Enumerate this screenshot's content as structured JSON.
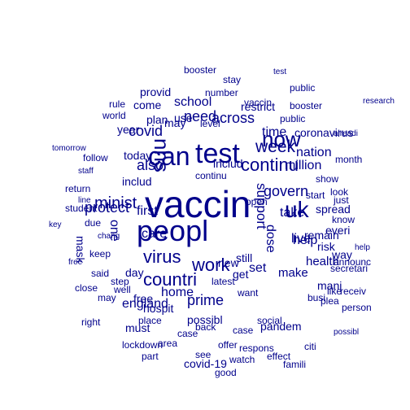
{
  "word_cloud": {
    "color": "#00008b",
    "words": [
      "vaccin",
      "peopl",
      "test",
      "can",
      "now",
      "nhs",
      "uk",
      "virus",
      "work",
      "countri",
      "week",
      "continu",
      "minist",
      "protect",
      "time",
      "covid",
      "also",
      "need",
      "across",
      "govern",
      "support",
      "school",
      "first",
      "care",
      "take",
      "million",
      "make",
      "nation",
      "live",
      "prime",
      "one",
      "dose",
      "help",
      "set",
      "home",
      "england",
      "health",
      "hospit",
      "plan",
      "today",
      "use",
      "year",
      "new",
      "may",
      "come",
      "know",
      "get",
      "still",
      "day",
      "mani",
      "coronavirus",
      "spread",
      "risk",
      "remain",
      "way",
      "everi",
      "vaccin",
      "pandem",
      "possibl",
      "mask",
      "must",
      "announc",
      "includ",
      "includ",
      "restrict",
      "free",
      "booster",
      "latest",
      "lockdown",
      "effect",
      "case",
      "place",
      "case",
      "social",
      "number",
      "level",
      "provid",
      "area",
      "start",
      "offer",
      "part",
      "public",
      "look",
      "keep",
      "back",
      "well",
      "said",
      "step",
      "just",
      "want",
      "see",
      "show",
      "month",
      "follow",
      "open",
      "good",
      "famili",
      "rule",
      "world",
      "like",
      "close",
      "plea",
      "continu",
      "covid-19",
      "person",
      "return",
      "due",
      "busi",
      "right",
      "watch",
      "student",
      "public",
      "receiv",
      "may",
      "tomorrow",
      "possibl",
      "respons",
      "secretari",
      "booster",
      "stay",
      "citi",
      "research",
      "key",
      "staff",
      "free",
      "chang",
      "line",
      "alreadi",
      "test",
      "help"
    ]
  }
}
